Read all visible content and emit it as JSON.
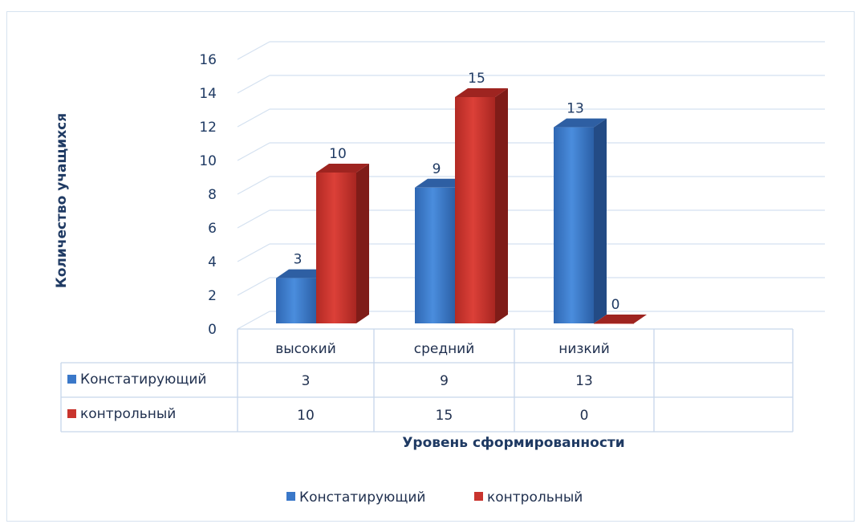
{
  "chart_data": {
    "type": "bar",
    "categories": [
      "высокий",
      "средний",
      "низкий"
    ],
    "series": [
      {
        "name": "Констатирующий",
        "values": [
          3,
          9,
          13
        ],
        "color": "#3a78c9"
      },
      {
        "name": "контрольный",
        "values": [
          10,
          15,
          0
        ],
        "color": "#c9342e"
      }
    ],
    "xlabel": "Уровень сформированности",
    "ylabel": "Количество учащихся",
    "ylim": [
      0,
      16
    ],
    "yticks": [
      "0",
      "2",
      "4",
      "6",
      "8",
      "10",
      "12",
      "14",
      "16"
    ],
    "grid": true,
    "legend": "bottom",
    "data_table": true,
    "style": "3d-clustered-column"
  }
}
